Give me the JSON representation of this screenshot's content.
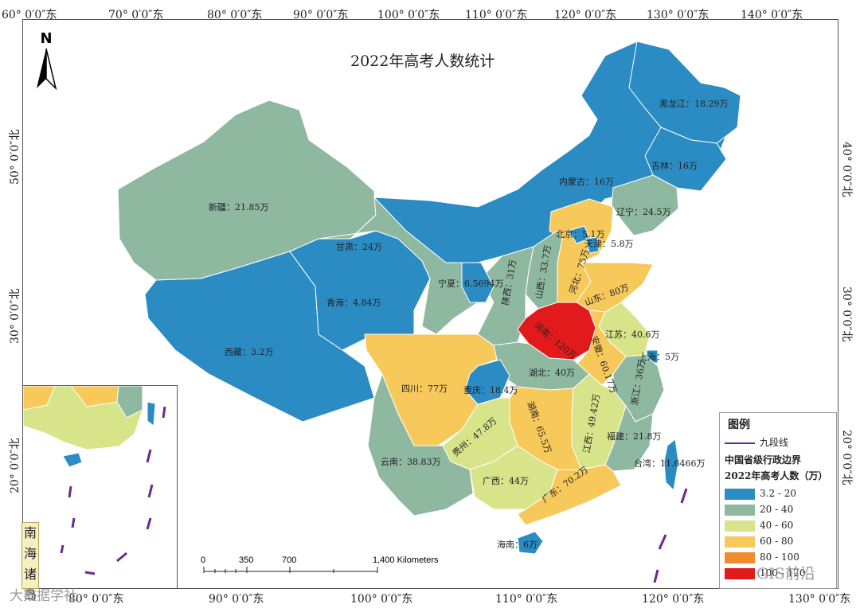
{
  "title": "2022年高考人数统计",
  "north_label": "N",
  "graticule": {
    "top": [
      "60° 0′0″东",
      "70° 0′0″东",
      "80° 0′0″东",
      "90° 0′0″东",
      "100° 0′0″东",
      "110° 0′0″东",
      "120° 0′0″东",
      "130° 0′0″东",
      "140° 0′0″东"
    ],
    "bottom": [
      "80° 0′0″东",
      "90° 0′0″东",
      "100° 0′0″东",
      "110° 0′0″东",
      "120° 0′0″东",
      "130° 0′0″东"
    ],
    "left": [
      "50° 0′0″北",
      "40° 0′0″北",
      "30° 0′0″北",
      "20° 0′0″北"
    ],
    "right": [
      "40° 0′0″北",
      "30° 0′0″北",
      "20° 0′0″北"
    ]
  },
  "provinces": {
    "heilongjiang": "黑龙江：18.29万",
    "jilin": "吉林：16万",
    "neimenggu": "内蒙古：16万",
    "liaoning": "辽宁：24.5万",
    "xinjiang": "新疆：21.85万",
    "gansu": "甘肃：24万",
    "beijing": "北京：5.1万",
    "tianjin": "天津：5.8万",
    "hebei": "河北：75万",
    "shanxi": "山西：33.7万",
    "shaanxi": "陕西：31万",
    "ningxia": "宁夏：6.5694万",
    "shandong": "山东：80万",
    "qinghai": "青海：4.84万",
    "henan": "河南：120万",
    "jiangsu": "江苏：40.6万",
    "anhui": "安徽：60.17万",
    "shanghai": "上海：5万",
    "xizang": "西藏：3.2万",
    "sichuan": "四川：77万",
    "chongqing": "重庆：18.4万",
    "hubei": "湖北：40万",
    "zhejiang": "浙江：36万",
    "hunan": "湖南：65.5万",
    "jiangxi": "江西：49.42万",
    "fujian": "福建：21.8万",
    "guizhou": "贵州：47.8万",
    "yunnan": "云南：38.83万",
    "guangxi": "广西：44万",
    "guangdong": "广东：70.2万",
    "taiwan": "台湾：11.6466万",
    "hainan": "海南：6万"
  },
  "legend": {
    "title": "图例",
    "line_label": "九段线",
    "boundary_label": "中国省级行政边界",
    "field_label": "2022年高考人数（万）",
    "classes": [
      {
        "label": "3.2 - 20",
        "color": "#2b8cc4"
      },
      {
        "label": "20 - 40",
        "color": "#8fb8a0"
      },
      {
        "label": "40 - 60",
        "color": "#d7e48a"
      },
      {
        "label": "60 - 80",
        "color": "#f7c85a"
      },
      {
        "label": "80 - 100",
        "color": "#f08a2e"
      },
      {
        "label": "100 - 120",
        "color": "#e31a1c"
      }
    ]
  },
  "scalebar": {
    "ticks": [
      "0",
      "350",
      "700",
      "1,400 Kilometers"
    ]
  },
  "inset": {
    "label": "南海诸岛"
  },
  "watermarks": {
    "left": "大数据学社",
    "right": "GIS前沿"
  },
  "colors": {
    "class1": "#2b8cc4",
    "class2": "#8fb8a0",
    "class3": "#d7e48a",
    "class4": "#f7c85a",
    "class5": "#f08a2e",
    "class6": "#e31a1c",
    "nine_dash": "#6b2a8c"
  }
}
